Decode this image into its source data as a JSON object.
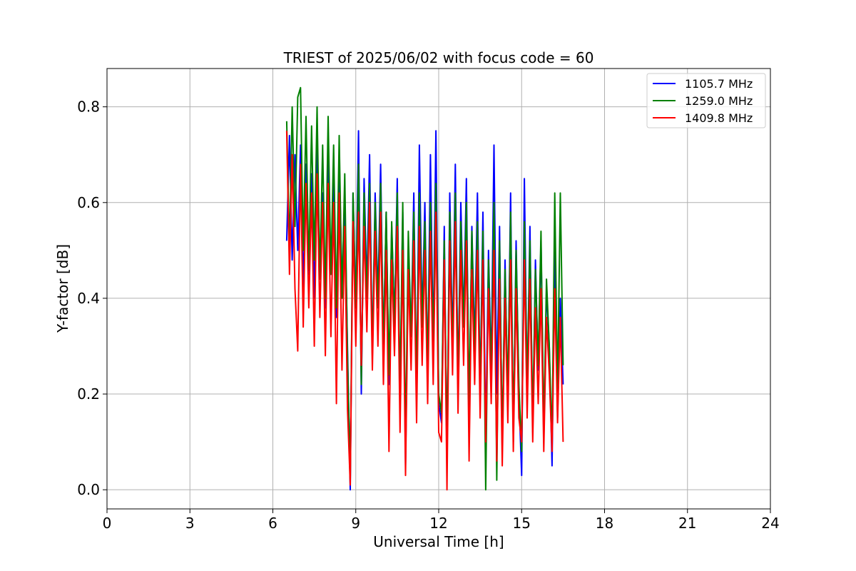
{
  "chart_data": {
    "type": "line",
    "title": "TRIEST of 2025/06/02 with focus code = 60",
    "xlabel": "Universal Time [h]",
    "ylabel": "Y-factor [dB]",
    "xlim": [
      0,
      24
    ],
    "ylim": [
      -0.04,
      0.88
    ],
    "xticks": [
      0,
      3,
      6,
      9,
      12,
      15,
      18,
      21,
      24
    ],
    "yticks": [
      0.0,
      0.2,
      0.4,
      0.6,
      0.8
    ],
    "grid": true,
    "legend_position": "top-right",
    "series": [
      {
        "name": "1105.7 MHz",
        "color": "#0000ff",
        "x": [
          6.5,
          6.6,
          6.7,
          6.8,
          6.9,
          7.0,
          7.1,
          7.2,
          7.3,
          7.4,
          7.5,
          7.6,
          7.7,
          7.8,
          7.9,
          8.0,
          8.1,
          8.2,
          8.3,
          8.4,
          8.5,
          8.6,
          8.7,
          8.8,
          8.9,
          9.0,
          9.1,
          9.2,
          9.3,
          9.4,
          9.5,
          9.6,
          9.7,
          9.8,
          9.9,
          10.0,
          10.1,
          10.2,
          10.3,
          10.4,
          10.5,
          10.6,
          10.7,
          10.8,
          10.9,
          11.0,
          11.1,
          11.2,
          11.3,
          11.4,
          11.5,
          11.6,
          11.7,
          11.8,
          11.9,
          12.0,
          12.1,
          12.2,
          12.3,
          12.4,
          12.5,
          12.6,
          12.7,
          12.8,
          12.9,
          13.0,
          13.1,
          13.2,
          13.3,
          13.4,
          13.5,
          13.6,
          13.7,
          13.8,
          13.9,
          14.0,
          14.1,
          14.2,
          14.3,
          14.4,
          14.5,
          14.6,
          14.7,
          14.8,
          14.9,
          15.0,
          15.1,
          15.2,
          15.3,
          15.4,
          15.5,
          15.6,
          15.7,
          15.8,
          15.9,
          16.0,
          16.1,
          16.2,
          16.3,
          16.4,
          16.5
        ],
        "y": [
          0.52,
          0.74,
          0.48,
          0.7,
          0.5,
          0.72,
          0.42,
          0.68,
          0.45,
          0.66,
          0.4,
          0.72,
          0.44,
          0.62,
          0.38,
          0.7,
          0.45,
          0.65,
          0.36,
          0.7,
          0.42,
          0.6,
          0.3,
          0.0,
          0.62,
          0.38,
          0.75,
          0.2,
          0.65,
          0.42,
          0.7,
          0.28,
          0.62,
          0.4,
          0.68,
          0.3,
          0.58,
          0.22,
          0.55,
          0.35,
          0.65,
          0.18,
          0.58,
          0.05,
          0.5,
          0.32,
          0.62,
          0.2,
          0.72,
          0.35,
          0.6,
          0.24,
          0.7,
          0.3,
          0.75,
          0.18,
          0.14,
          0.55,
          0.05,
          0.62,
          0.3,
          0.68,
          0.22,
          0.6,
          0.35,
          0.65,
          0.15,
          0.55,
          0.3,
          0.62,
          0.2,
          0.58,
          0.1,
          0.5,
          0.25,
          0.72,
          0.2,
          0.55,
          0.08,
          0.48,
          0.18,
          0.62,
          0.1,
          0.52,
          0.2,
          0.03,
          0.65,
          0.2,
          0.55,
          0.12,
          0.48,
          0.25,
          0.52,
          0.1,
          0.42,
          0.3,
          0.05,
          0.5,
          0.15,
          0.4,
          0.22
        ]
      },
      {
        "name": "1259.0 MHz",
        "color": "#008000",
        "x": [
          6.5,
          6.6,
          6.7,
          6.8,
          6.9,
          7.0,
          7.1,
          7.2,
          7.3,
          7.4,
          7.5,
          7.6,
          7.7,
          7.8,
          7.9,
          8.0,
          8.1,
          8.2,
          8.3,
          8.4,
          8.5,
          8.6,
          8.7,
          8.8,
          8.9,
          9.0,
          9.1,
          9.2,
          9.3,
          9.4,
          9.5,
          9.6,
          9.7,
          9.8,
          9.9,
          10.0,
          10.1,
          10.2,
          10.3,
          10.4,
          10.5,
          10.6,
          10.7,
          10.8,
          10.9,
          11.0,
          11.1,
          11.2,
          11.3,
          11.4,
          11.5,
          11.6,
          11.7,
          11.8,
          11.9,
          12.0,
          12.1,
          12.2,
          12.3,
          12.4,
          12.5,
          12.6,
          12.7,
          12.8,
          12.9,
          13.0,
          13.1,
          13.2,
          13.3,
          13.4,
          13.5,
          13.6,
          13.7,
          13.8,
          13.9,
          14.0,
          14.1,
          14.2,
          14.3,
          14.4,
          14.5,
          14.6,
          14.7,
          14.8,
          14.9,
          15.0,
          15.1,
          15.2,
          15.3,
          15.4,
          15.5,
          15.6,
          15.7,
          15.8,
          15.9,
          16.0,
          16.1,
          16.2,
          16.3,
          16.4,
          16.5
        ],
        "y": [
          0.77,
          0.5,
          0.8,
          0.55,
          0.82,
          0.84,
          0.5,
          0.78,
          0.46,
          0.76,
          0.48,
          0.8,
          0.44,
          0.72,
          0.4,
          0.78,
          0.45,
          0.72,
          0.38,
          0.74,
          0.4,
          0.66,
          0.28,
          0.02,
          0.62,
          0.38,
          0.68,
          0.22,
          0.62,
          0.4,
          0.64,
          0.28,
          0.6,
          0.38,
          0.64,
          0.3,
          0.58,
          0.24,
          0.56,
          0.34,
          0.62,
          0.2,
          0.6,
          0.1,
          0.54,
          0.32,
          0.58,
          0.22,
          0.62,
          0.34,
          0.56,
          0.26,
          0.6,
          0.3,
          0.64,
          0.2,
          0.16,
          0.52,
          0.08,
          0.58,
          0.28,
          0.62,
          0.22,
          0.56,
          0.34,
          0.6,
          0.18,
          0.54,
          0.28,
          0.56,
          0.2,
          0.54,
          0.0,
          0.48,
          0.24,
          0.6,
          0.02,
          0.52,
          0.1,
          0.46,
          0.2,
          0.58,
          0.12,
          0.5,
          0.22,
          0.08,
          0.56,
          0.22,
          0.52,
          0.14,
          0.46,
          0.26,
          0.54,
          0.12,
          0.44,
          0.3,
          0.1,
          0.62,
          0.2,
          0.62,
          0.26
        ]
      },
      {
        "name": "1409.8 MHz",
        "color": "#ff0000",
        "x": [
          6.5,
          6.6,
          6.7,
          6.8,
          6.9,
          7.0,
          7.1,
          7.2,
          7.3,
          7.4,
          7.5,
          7.6,
          7.7,
          7.8,
          7.9,
          8.0,
          8.1,
          8.2,
          8.3,
          8.4,
          8.5,
          8.6,
          8.7,
          8.8,
          8.9,
          9.0,
          9.1,
          9.2,
          9.3,
          9.4,
          9.5,
          9.6,
          9.7,
          9.8,
          9.9,
          10.0,
          10.1,
          10.2,
          10.3,
          10.4,
          10.5,
          10.6,
          10.7,
          10.8,
          10.9,
          11.0,
          11.1,
          11.2,
          11.3,
          11.4,
          11.5,
          11.6,
          11.7,
          11.8,
          11.9,
          12.0,
          12.1,
          12.2,
          12.3,
          12.4,
          12.5,
          12.6,
          12.7,
          12.8,
          12.9,
          13.0,
          13.1,
          13.2,
          13.3,
          13.4,
          13.5,
          13.6,
          13.7,
          13.8,
          13.9,
          14.0,
          14.1,
          14.2,
          14.3,
          14.4,
          14.5,
          14.6,
          14.7,
          14.8,
          14.9,
          15.0,
          15.1,
          15.2,
          15.3,
          15.4,
          15.5,
          15.6,
          15.7,
          15.8,
          15.9,
          16.0,
          16.1,
          16.2,
          16.3,
          16.4,
          16.5
        ],
        "y": [
          0.75,
          0.45,
          0.7,
          0.42,
          0.29,
          0.68,
          0.34,
          0.64,
          0.38,
          0.62,
          0.3,
          0.66,
          0.36,
          0.6,
          0.28,
          0.64,
          0.32,
          0.6,
          0.18,
          0.62,
          0.25,
          0.55,
          0.17,
          0.01,
          0.56,
          0.3,
          0.58,
          0.26,
          0.55,
          0.33,
          0.6,
          0.25,
          0.54,
          0.3,
          0.58,
          0.22,
          0.5,
          0.08,
          0.48,
          0.28,
          0.55,
          0.12,
          0.5,
          0.03,
          0.46,
          0.25,
          0.52,
          0.14,
          0.55,
          0.26,
          0.5,
          0.18,
          0.54,
          0.22,
          0.58,
          0.12,
          0.1,
          0.48,
          0.0,
          0.52,
          0.24,
          0.56,
          0.16,
          0.5,
          0.26,
          0.52,
          0.06,
          0.46,
          0.22,
          0.5,
          0.15,
          0.48,
          0.1,
          0.42,
          0.18,
          0.5,
          0.06,
          0.44,
          0.05,
          0.4,
          0.14,
          0.48,
          0.08,
          0.42,
          0.15,
          0.1,
          0.48,
          0.15,
          0.44,
          0.1,
          0.38,
          0.18,
          0.42,
          0.08,
          0.36,
          0.24,
          0.08,
          0.42,
          0.14,
          0.36,
          0.1
        ]
      }
    ]
  }
}
